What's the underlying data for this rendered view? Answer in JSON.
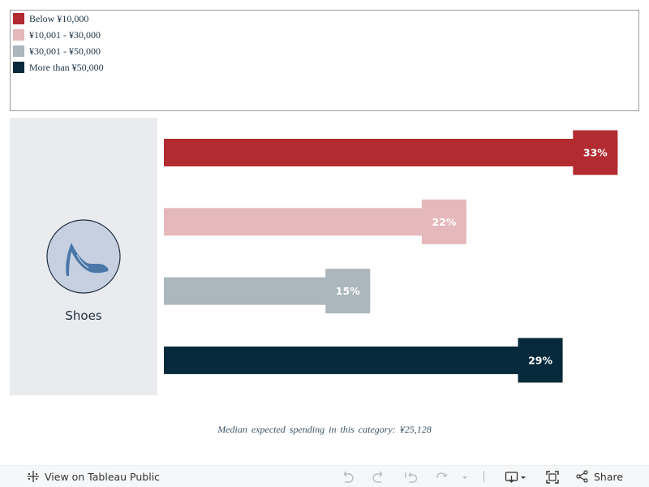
{
  "chart_data": {
    "type": "bar",
    "orientation": "horizontal",
    "category": "Shoes",
    "categories": [
      "Below ¥10,000",
      "¥10,001 - ¥30,000",
      "¥30,001 - ¥50,000",
      "More than ¥50,000"
    ],
    "values": [
      33,
      22,
      15,
      29
    ],
    "value_labels": [
      "33%",
      "22%",
      "15%",
      "29%"
    ],
    "unit": "%",
    "xlim": [
      0,
      35
    ],
    "colors": [
      "#b22b31",
      "#e5b8bb",
      "#abb6bd",
      "#062a3b"
    ],
    "legend_position": "top-left",
    "grid": false
  },
  "legend": {
    "items": [
      {
        "label": "Below ¥10,000",
        "color": "#b22b31"
      },
      {
        "label": "¥10,001 - ¥30,000",
        "color": "#e5b8bb"
      },
      {
        "label": "¥30,001 - ¥50,000",
        "color": "#abb6bd"
      },
      {
        "label": "More than ¥50,000",
        "color": "#062a3b"
      }
    ]
  },
  "panel": {
    "category_label": "Shoes",
    "icon": "high-heel-shoe-icon"
  },
  "footer": {
    "median_note": "Median expected spending in this category: ¥25,128"
  },
  "toolbar": {
    "view_label": "View on Tableau Public",
    "share_label": "Share",
    "icons": [
      "tableau-logo-icon",
      "undo-icon",
      "redo-icon",
      "revert-icon",
      "refresh-icon",
      "dropdown-arrow-icon",
      "download-icon",
      "fullscreen-icon",
      "share-icon"
    ]
  }
}
